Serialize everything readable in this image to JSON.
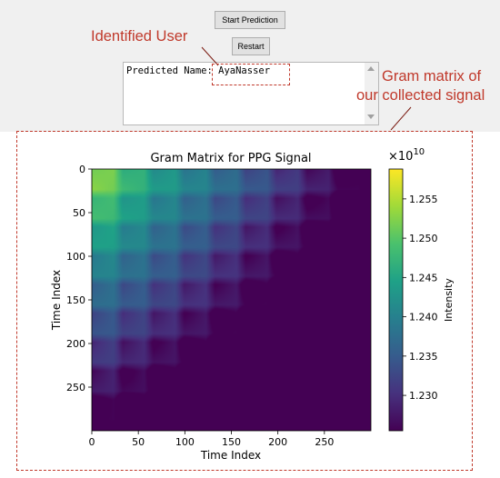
{
  "app": {
    "start_button": "Start Prediction",
    "restart_button": "Restart",
    "output_text": "Predicted Name: AyaNasser"
  },
  "annotations": {
    "identified_user": "Identified User",
    "gram_line1": "Gram matrix of",
    "gram_line2": "our  collected signal",
    "color": "#c0392b"
  },
  "chart_data": {
    "type": "heatmap",
    "title": "Gram Matrix for PPG Signal",
    "xlabel": "Time Index",
    "ylabel": "Time Index",
    "colorbar_label": "Intensity",
    "colorbar_exponent": "×10",
    "colorbar_exponent_power": "10",
    "colormap": "viridis",
    "xlim": [
      0,
      300
    ],
    "ylim": [
      300,
      0
    ],
    "x_ticks": [
      "0",
      "50",
      "100",
      "150",
      "200",
      "250"
    ],
    "y_ticks": [
      "0",
      "50",
      "100",
      "150",
      "200",
      "250"
    ],
    "colorbar_range": [
      1.2255,
      1.2588
    ],
    "colorbar_ticks": [
      "1.255",
      "1.250",
      "1.245",
      "1.240",
      "1.235",
      "1.230"
    ]
  }
}
